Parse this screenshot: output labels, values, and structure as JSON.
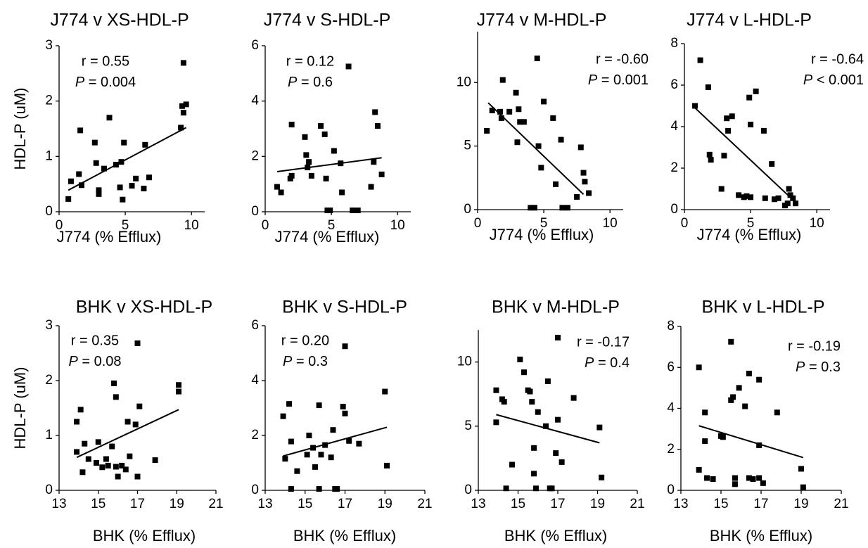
{
  "chart_data": [
    {
      "type": "scatter",
      "title": "J774 v XS-HDL-P",
      "xlabel": "J774 (% Efflux)",
      "ylabel": "HDL-P (uM)",
      "color": "#000000",
      "xlim": [
        0,
        11
      ],
      "ylim": [
        0,
        3
      ],
      "xticks": [
        0,
        5,
        10
      ],
      "yticks": [
        0,
        1,
        2,
        3
      ],
      "annotations": [
        "r = 0.55",
        "P = 0.004"
      ],
      "x": [
        0.7,
        0.9,
        1.5,
        1.6,
        1.7,
        2.7,
        2.8,
        3.0,
        3.0,
        3.4,
        3.8,
        4.3,
        4.6,
        4.7,
        4.8,
        4.9,
        5.5,
        5.8,
        6.4,
        6.5,
        6.8,
        9.2,
        9.3,
        9.4,
        9.4,
        9.6
      ],
      "y": [
        0.23,
        0.55,
        0.68,
        1.47,
        0.48,
        1.25,
        0.88,
        0.32,
        0.39,
        0.78,
        1.7,
        0.85,
        0.44,
        0.9,
        0.22,
        1.25,
        0.47,
        0.6,
        0.42,
        1.21,
        0.62,
        1.52,
        1.91,
        1.79,
        2.69,
        1.94
      ],
      "fit": {
        "x": [
          0.7,
          9.6
        ],
        "y": [
          0.39,
          1.52
        ]
      }
    },
    {
      "type": "scatter",
      "title": "J774 v S-HDL-P",
      "xlabel": "J774 (% Efflux)",
      "color": "#000000",
      "xlim": [
        0,
        11
      ],
      "ylim": [
        0,
        6
      ],
      "xticks": [
        0,
        5,
        10
      ],
      "yticks": [
        0,
        2,
        4,
        6
      ],
      "annotations": [
        "r = 0.12",
        "P = 0.6"
      ],
      "x": [
        0.9,
        1.2,
        2.0,
        1.9,
        2.0,
        3.0,
        3.1,
        3.3,
        3.2,
        3.5,
        4.2,
        4.5,
        4.6,
        4.7,
        4.9,
        5.2,
        5.7,
        5.8,
        6.3,
        6.6,
        7.0,
        8.0,
        8.2,
        8.3,
        8.5,
        8.8
      ],
      "y": [
        0.9,
        0.7,
        3.15,
        1.2,
        1.3,
        2.7,
        2.05,
        1.8,
        1.6,
        1.3,
        3.1,
        2.8,
        1.2,
        0.05,
        0.05,
        2.2,
        1.75,
        0.7,
        5.25,
        0.05,
        0.05,
        0.9,
        1.8,
        3.6,
        3.1,
        1.35
      ],
      "fit": {
        "x": [
          0.9,
          8.8
        ],
        "y": [
          1.45,
          1.95
        ]
      }
    },
    {
      "type": "scatter",
      "title": "J774 v M-HDL-P",
      "xlabel": "J774 (% Efflux)",
      "color": "#000000",
      "xlim": [
        0,
        11
      ],
      "ylim": [
        0,
        14
      ],
      "xticks": [
        0,
        5,
        10
      ],
      "yticks": [
        0,
        5,
        10
      ],
      "annotations": [
        "r = -0.60",
        "P = 0.001"
      ],
      "x": [
        0.7,
        1.1,
        1.7,
        1.8,
        1.9,
        2.4,
        2.9,
        3.0,
        3.1,
        3.2,
        3.5,
        4.0,
        4.3,
        4.5,
        4.6,
        4.8,
        5.0,
        5.7,
        5.9,
        6.3,
        6.4,
        6.8,
        7.5,
        7.8,
        8.0,
        8.1,
        8.4
      ],
      "y": [
        6.2,
        7.8,
        7.7,
        7.2,
        10.2,
        7.7,
        9.2,
        5.3,
        7.9,
        6.9,
        6.9,
        0.15,
        0.15,
        11.9,
        5.0,
        3.3,
        8.5,
        7.2,
        2.0,
        5.5,
        0.15,
        0.15,
        1.0,
        4.9,
        2.9,
        2.2,
        1.3
      ],
      "fit": {
        "x": [
          0.8,
          8.0
        ],
        "y": [
          8.4,
          1.2
        ]
      }
    },
    {
      "type": "scatter",
      "title": "J774 v L-HDL-P",
      "xlabel": "J774 (% Efflux)",
      "color": "#000000",
      "xlim": [
        0,
        11
      ],
      "ylim": [
        0,
        8
      ],
      "xticks": [
        0,
        5,
        10
      ],
      "yticks": [
        0,
        2,
        4,
        6,
        8
      ],
      "annotations": [
        "r = -0.64",
        "P < 0.001"
      ],
      "x": [
        0.8,
        1.2,
        1.8,
        1.9,
        2.0,
        2.8,
        3.0,
        3.2,
        3.3,
        3.6,
        4.1,
        4.5,
        4.7,
        4.9,
        5.0,
        5.0,
        5.4,
        6.0,
        6.1,
        6.6,
        6.8,
        7.1,
        7.6,
        7.8,
        7.9,
        8.0,
        8.2,
        8.4
      ],
      "y": [
        5.0,
        7.2,
        5.9,
        2.65,
        2.4,
        1.0,
        2.6,
        4.4,
        3.8,
        4.5,
        0.7,
        0.6,
        0.65,
        5.4,
        4.1,
        0.6,
        5.7,
        3.8,
        0.55,
        2.2,
        0.5,
        0.55,
        0.2,
        0.3,
        1.0,
        0.7,
        0.55,
        0.3
      ],
      "fit": {
        "x": [
          0.8,
          8.4
        ],
        "y": [
          4.9,
          0.35
        ]
      }
    },
    {
      "type": "scatter",
      "title": "BHK v XS-HDL-P",
      "xlabel": "BHK (% Efflux)",
      "ylabel": "HDL-P (uM)",
      "color": "#000000",
      "xlim": [
        13,
        21
      ],
      "ylim": [
        0,
        3
      ],
      "xticks": [
        13,
        15,
        17,
        19,
        21
      ],
      "yticks": [
        0,
        1,
        2,
        3
      ],
      "annotations": [
        "r = 0.35",
        "P = 0.08"
      ],
      "x": [
        13.9,
        13.9,
        14.1,
        14.2,
        14.3,
        14.5,
        14.9,
        15.0,
        15.2,
        15.4,
        15.5,
        15.7,
        15.8,
        15.9,
        15.9,
        16.0,
        16.2,
        16.4,
        16.5,
        16.6,
        16.9,
        17.0,
        17.1,
        17.0,
        17.9,
        19.1,
        19.1
      ],
      "y": [
        0.7,
        1.25,
        1.47,
        0.33,
        0.85,
        0.57,
        0.5,
        0.88,
        0.42,
        0.57,
        0.45,
        0.8,
        1.95,
        1.7,
        0.43,
        0.25,
        0.45,
        0.38,
        1.25,
        0.62,
        1.2,
        0.25,
        1.53,
        2.68,
        0.55,
        1.8,
        1.92
      ],
      "fit": {
        "x": [
          13.9,
          19.1
        ],
        "y": [
          0.6,
          1.47
        ]
      }
    },
    {
      "type": "scatter",
      "title": "BHK v S-HDL-P",
      "xlabel": "BHK (% Efflux)",
      "color": "#000000",
      "xlim": [
        13,
        21
      ],
      "ylim": [
        0,
        6
      ],
      "xticks": [
        13,
        15,
        17,
        19,
        21
      ],
      "yticks": [
        0,
        2,
        4,
        6
      ],
      "annotations": [
        "r = 0.20",
        "P = 0.3"
      ],
      "x": [
        13.9,
        14.0,
        14.2,
        14.3,
        14.3,
        14.6,
        15.1,
        15.2,
        15.4,
        15.5,
        15.7,
        15.7,
        15.8,
        16.0,
        16.3,
        16.4,
        16.5,
        16.6,
        16.9,
        17.0,
        17.0,
        17.2,
        17.7,
        19.0,
        19.1
      ],
      "y": [
        2.7,
        1.15,
        3.15,
        1.78,
        0.05,
        0.7,
        1.3,
        2.0,
        1.55,
        0.85,
        3.1,
        0.05,
        1.3,
        1.65,
        1.2,
        2.2,
        0.05,
        0.05,
        3.05,
        5.25,
        2.8,
        1.8,
        1.7,
        3.6,
        0.9
      ],
      "fit": {
        "x": [
          13.9,
          19.1
        ],
        "y": [
          1.25,
          2.3
        ]
      }
    },
    {
      "type": "scatter",
      "title": "BHK v M-HDL-P",
      "xlabel": "BHK (% Efflux)",
      "color": "#000000",
      "xlim": [
        13,
        21
      ],
      "ylim": [
        0,
        12.5
      ],
      "xticks": [
        13,
        15,
        17,
        19,
        21
      ],
      "yticks": [
        0,
        5,
        10
      ],
      "annotations": [
        "r = -0.17",
        "P = 0.4"
      ],
      "x": [
        13.9,
        13.9,
        14.2,
        14.3,
        14.4,
        14.7,
        15.1,
        15.3,
        15.5,
        15.6,
        15.7,
        15.8,
        15.8,
        15.9,
        16.0,
        16.4,
        16.5,
        16.6,
        16.7,
        16.9,
        17.0,
        17.0,
        17.2,
        17.8,
        19.1,
        19.2
      ],
      "y": [
        7.8,
        5.3,
        7.1,
        6.9,
        0.15,
        2.0,
        10.2,
        9.2,
        7.8,
        7.7,
        6.9,
        3.3,
        1.3,
        0.15,
        6.1,
        5.0,
        8.5,
        0.15,
        0.15,
        2.9,
        5.5,
        11.9,
        2.2,
        7.2,
        4.9,
        1.0
      ],
      "fit": {
        "x": [
          13.9,
          19.1
        ],
        "y": [
          5.9,
          3.7
        ]
      }
    },
    {
      "type": "scatter",
      "title": "BHK v L-HDL-P",
      "xlabel": "BHK (% Efflux)",
      "color": "#000000",
      "xlim": [
        13,
        21
      ],
      "ylim": [
        0,
        8
      ],
      "xticks": [
        13,
        15,
        17,
        19,
        21
      ],
      "yticks": [
        0,
        2,
        4,
        6,
        8
      ],
      "annotations": [
        "r = -0.19",
        "P = 0.3"
      ],
      "x": [
        13.9,
        13.9,
        14.2,
        14.2,
        14.3,
        14.6,
        15.0,
        15.1,
        15.5,
        15.5,
        15.6,
        15.7,
        15.7,
        15.9,
        16.2,
        16.4,
        16.4,
        16.6,
        16.9,
        16.9,
        16.9,
        17.1,
        17.8,
        19.0,
        19.1
      ],
      "y": [
        6.0,
        1.0,
        2.4,
        3.8,
        0.6,
        0.55,
        2.65,
        2.6,
        7.25,
        4.4,
        4.55,
        0.3,
        0.6,
        5.0,
        4.1,
        5.7,
        0.6,
        0.55,
        5.4,
        2.2,
        0.6,
        0.35,
        3.8,
        1.05,
        0.15
      ],
      "fit": {
        "x": [
          13.9,
          19.1
        ],
        "y": [
          3.15,
          1.6
        ]
      }
    }
  ]
}
